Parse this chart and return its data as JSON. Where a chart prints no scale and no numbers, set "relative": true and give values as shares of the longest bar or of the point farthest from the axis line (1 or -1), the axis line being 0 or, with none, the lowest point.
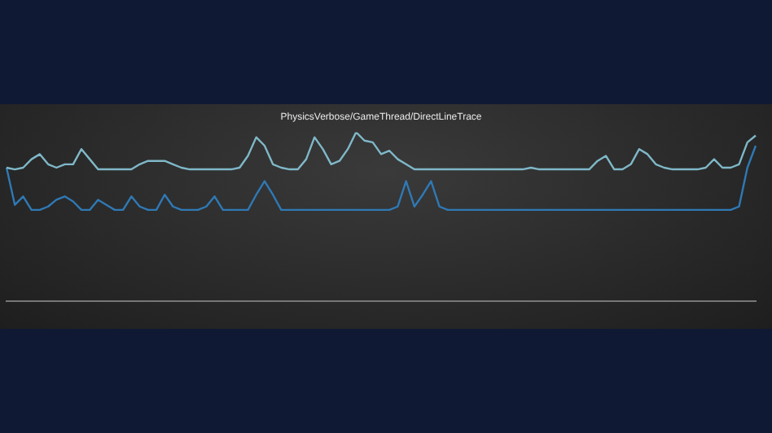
{
  "chart_data": {
    "type": "line",
    "title": "PhysicsVerbose/GameThread/DirectLineTrace",
    "relative": true,
    "grid": false,
    "legend": false,
    "marker": "none",
    "line_style": "solid",
    "categories": [
      null,
      null,
      null,
      null,
      null,
      null,
      null,
      null,
      null,
      null,
      null,
      null,
      null,
      null,
      null,
      null,
      null,
      null,
      null,
      null,
      null,
      null,
      null,
      null,
      null,
      null,
      null,
      null,
      null,
      null,
      null,
      null,
      null,
      null,
      null,
      null,
      null,
      null,
      null,
      null,
      null,
      null,
      null,
      null,
      null,
      null,
      null,
      null,
      null,
      null,
      null,
      null,
      null,
      null,
      null,
      null,
      null,
      null,
      null,
      null,
      null,
      null,
      null,
      null,
      null,
      null,
      null,
      null,
      null,
      null,
      null,
      null,
      null,
      null,
      null,
      null,
      null,
      null,
      null,
      null,
      null,
      null,
      null,
      null,
      null,
      null,
      null,
      null,
      null,
      null,
      null
    ],
    "series": [
      {
        "color": "#7fb8c8",
        "values": [
          0.79,
          0.78,
          0.79,
          0.84,
          0.87,
          0.81,
          0.79,
          0.81,
          0.81,
          0.9,
          0.84,
          0.78,
          0.78,
          0.78,
          0.78,
          0.78,
          0.81,
          0.83,
          0.83,
          0.83,
          0.81,
          0.79,
          0.78,
          0.78,
          0.78,
          0.78,
          0.78,
          0.78,
          0.79,
          0.86,
          0.97,
          0.92,
          0.81,
          0.79,
          0.78,
          0.78,
          0.84,
          0.97,
          0.9,
          0.81,
          0.83,
          0.9,
          1,
          0.95,
          0.94,
          0.87,
          0.89,
          0.84,
          0.81,
          0.78,
          0.78,
          0.78,
          0.78,
          0.78,
          0.78,
          0.78,
          0.78,
          0.78,
          0.78,
          0.78,
          0.78,
          0.78,
          0.78,
          0.79,
          0.78,
          0.78,
          0.78,
          0.78,
          0.78,
          0.78,
          0.78,
          0.83,
          0.86,
          0.78,
          0.78,
          0.81,
          0.9,
          0.87,
          0.81,
          0.79,
          0.78,
          0.78,
          0.78,
          0.78,
          0.79,
          0.84,
          0.79,
          0.79,
          0.81,
          0.94,
          0.98
        ]
      },
      {
        "color": "#2f79b5",
        "values": [
          0.79,
          0.57,
          0.62,
          0.54,
          0.54,
          0.56,
          0.6,
          0.62,
          0.59,
          0.54,
          0.54,
          0.6,
          0.57,
          0.54,
          0.54,
          0.62,
          0.56,
          0.54,
          0.54,
          0.63,
          0.56,
          0.54,
          0.54,
          0.54,
          0.56,
          0.62,
          0.54,
          0.54,
          0.54,
          0.54,
          0.63,
          0.71,
          0.63,
          0.54,
          0.54,
          0.54,
          0.54,
          0.54,
          0.54,
          0.54,
          0.54,
          0.54,
          0.54,
          0.54,
          0.54,
          0.54,
          0.54,
          0.56,
          0.71,
          0.56,
          0.63,
          0.71,
          0.56,
          0.54,
          0.54,
          0.54,
          0.54,
          0.54,
          0.54,
          0.54,
          0.54,
          0.54,
          0.54,
          0.54,
          0.54,
          0.54,
          0.54,
          0.54,
          0.54,
          0.54,
          0.54,
          0.54,
          0.54,
          0.54,
          0.54,
          0.54,
          0.54,
          0.54,
          0.54,
          0.54,
          0.54,
          0.54,
          0.54,
          0.54,
          0.54,
          0.54,
          0.54,
          0.54,
          0.56,
          0.79,
          0.92
        ]
      }
    ]
  }
}
